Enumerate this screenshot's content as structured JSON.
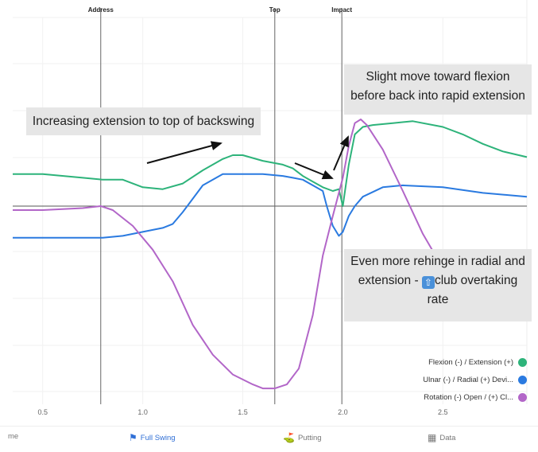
{
  "chart_data": {
    "type": "line",
    "xlim": [
      0.35,
      2.92
    ],
    "ylim": [
      -1.0,
      1.0
    ],
    "xticks": [
      0.5,
      1.0,
      1.5,
      2.0,
      2.5
    ],
    "xtick_labels": [
      "0.5",
      "1.0",
      "1.5",
      "2.0",
      "2.5"
    ],
    "grid": true,
    "legend_position": "bottom-right",
    "events": [
      {
        "label": "Address",
        "x": 0.79
      },
      {
        "label": "Top",
        "x": 1.66
      },
      {
        "label": "Impact",
        "x": 1.995
      }
    ],
    "series": [
      {
        "name": "Flexion (-) / Extension (+)",
        "color": "#2db37a",
        "x": [
          0.35,
          0.5,
          0.7,
          0.8,
          0.9,
          1.0,
          1.1,
          1.2,
          1.3,
          1.4,
          1.45,
          1.5,
          1.6,
          1.7,
          1.75,
          1.8,
          1.85,
          1.9,
          1.95,
          1.98,
          2.0,
          2.03,
          2.06,
          2.1,
          2.15,
          2.25,
          2.35,
          2.5,
          2.6,
          2.7,
          2.8,
          2.92
        ],
        "y": [
          0.17,
          0.17,
          0.15,
          0.14,
          0.14,
          0.1,
          0.09,
          0.12,
          0.19,
          0.25,
          0.27,
          0.27,
          0.24,
          0.22,
          0.2,
          0.16,
          0.13,
          0.1,
          0.08,
          0.09,
          0.0,
          0.22,
          0.38,
          0.42,
          0.43,
          0.44,
          0.45,
          0.42,
          0.38,
          0.33,
          0.29,
          0.26
        ]
      },
      {
        "name": "Ulnar (-) / Radial (+) Devi...",
        "color": "#2a7ae0",
        "x": [
          0.35,
          0.5,
          0.7,
          0.8,
          0.9,
          1.0,
          1.1,
          1.15,
          1.2,
          1.3,
          1.4,
          1.5,
          1.6,
          1.7,
          1.75,
          1.8,
          1.85,
          1.9,
          1.92,
          1.95,
          1.98,
          2.0,
          2.03,
          2.06,
          2.1,
          2.2,
          2.3,
          2.5,
          2.7,
          2.92
        ],
        "y": [
          -0.16,
          -0.16,
          -0.16,
          -0.16,
          -0.15,
          -0.13,
          -0.11,
          -0.09,
          -0.03,
          0.11,
          0.17,
          0.17,
          0.17,
          0.16,
          0.15,
          0.14,
          0.11,
          0.08,
          0.0,
          -0.1,
          -0.15,
          -0.13,
          -0.05,
          0.0,
          0.05,
          0.1,
          0.11,
          0.1,
          0.07,
          0.05
        ]
      },
      {
        "name": "Rotation (-) Open / (+) Cl...",
        "color": "#b266c8",
        "x": [
          0.35,
          0.5,
          0.7,
          0.79,
          0.85,
          0.95,
          1.05,
          1.15,
          1.25,
          1.35,
          1.45,
          1.55,
          1.6,
          1.66,
          1.72,
          1.78,
          1.85,
          1.9,
          1.95,
          2.0,
          2.03,
          2.06,
          2.09,
          2.12,
          2.2,
          2.3,
          2.4,
          2.55
        ],
        "y": [
          -0.02,
          -0.02,
          -0.01,
          0.0,
          -0.02,
          -0.1,
          -0.22,
          -0.38,
          -0.6,
          -0.75,
          -0.85,
          -0.9,
          -0.92,
          -0.92,
          -0.9,
          -0.82,
          -0.55,
          -0.25,
          -0.05,
          0.15,
          0.32,
          0.44,
          0.46,
          0.43,
          0.3,
          0.08,
          -0.14,
          -0.4
        ]
      }
    ]
  },
  "annotations": {
    "backswing": "Increasing extension to top of backswing",
    "flexion": "Slight move toward flexion\nbefore back into rapid extension",
    "rehinge_1": "Even more rehinge in radial and",
    "rehinge_2": "extension -",
    "rehinge_3": "club overtaking",
    "rehinge_4": "rate"
  },
  "tabs": [
    {
      "label": "me",
      "icon": "home-icon"
    },
    {
      "label": "Full Swing",
      "icon": "golfer-icon",
      "active": true
    },
    {
      "label": "Putting",
      "icon": "putting-icon"
    },
    {
      "label": "Data",
      "icon": "data-icon"
    }
  ]
}
